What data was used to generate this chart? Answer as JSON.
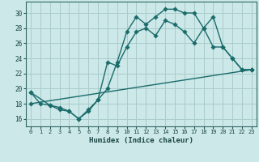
{
  "xlabel": "Humidex (Indice chaleur)",
  "bg_color": "#cce8e8",
  "grid_color": "#aacccc",
  "line_color": "#1a6b6b",
  "xlim": [
    -0.5,
    23.5
  ],
  "ylim": [
    15.0,
    31.5
  ],
  "xticks": [
    0,
    1,
    2,
    3,
    4,
    5,
    6,
    7,
    8,
    9,
    10,
    11,
    12,
    13,
    14,
    15,
    16,
    17,
    18,
    19,
    20,
    21,
    22,
    23
  ],
  "yticks": [
    16,
    18,
    20,
    22,
    24,
    26,
    28,
    30
  ],
  "line1_x": [
    0,
    1,
    2,
    3,
    4,
    5,
    6,
    7,
    8,
    9,
    10,
    11,
    12,
    13,
    14,
    15,
    16,
    17,
    18,
    19,
    20,
    21,
    22,
    23
  ],
  "line1_y": [
    19.5,
    18.0,
    17.8,
    17.5,
    17.0,
    16.0,
    17.0,
    18.5,
    20.0,
    23.5,
    27.5,
    29.5,
    28.5,
    29.5,
    30.5,
    30.5,
    30.0,
    30.0,
    28.0,
    29.5,
    25.5,
    24.0,
    22.5,
    22.5
  ],
  "line2_x": [
    0,
    2,
    3,
    4,
    5,
    6,
    7,
    8,
    9,
    10,
    11,
    12,
    13,
    14,
    15,
    16,
    17,
    18,
    19,
    20,
    21,
    22,
    23
  ],
  "line2_y": [
    19.5,
    17.8,
    17.2,
    17.0,
    16.0,
    17.2,
    18.5,
    23.5,
    23.0,
    25.5,
    27.5,
    28.0,
    27.0,
    29.0,
    28.5,
    27.5,
    26.0,
    28.0,
    25.5,
    25.5,
    24.0,
    22.5,
    22.5
  ],
  "line3_x": [
    0,
    23
  ],
  "line3_y": [
    18.0,
    22.5
  ],
  "xlabel_fontsize": 6.5,
  "tick_fontsize": 5.0
}
